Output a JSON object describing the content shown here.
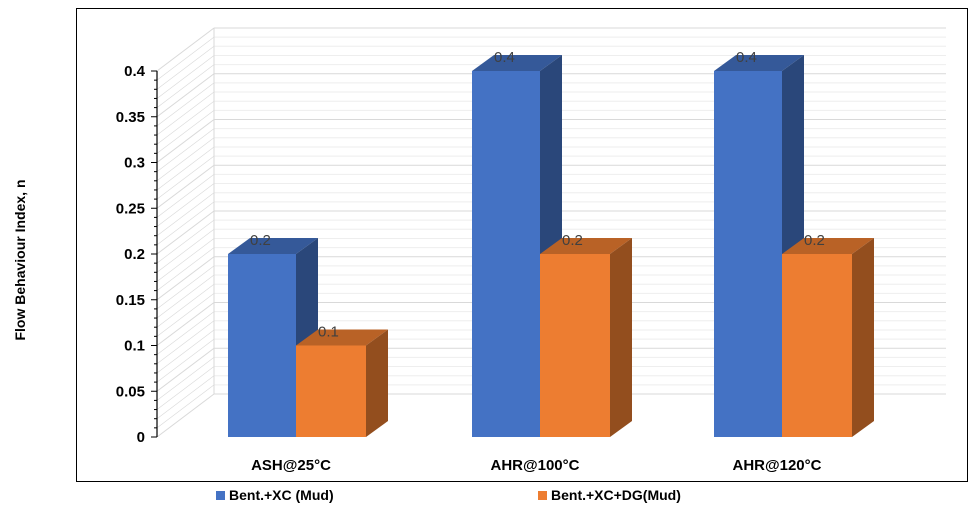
{
  "chart_data": {
    "type": "bar",
    "title": "",
    "ylabel": "Flow Behaviour Index, n",
    "xlabel": "",
    "categories": [
      "ASH@25°C",
      "AHR@100°C",
      "AHR@120°C"
    ],
    "series": [
      {
        "name": "Bent.+XC (Mud)",
        "values": [
          0.2,
          0.4,
          0.4
        ],
        "color": "#4472C4",
        "labels": [
          "0.2",
          "0.4",
          "0.4"
        ]
      },
      {
        "name": "Bent.+XC+DG(Mud)",
        "values": [
          0.1,
          0.2,
          0.2
        ],
        "color": "#ED7D31",
        "labels": [
          "0.1",
          "0.2",
          "0.2"
        ]
      }
    ],
    "ylim": [
      0,
      0.4
    ],
    "yticks": [
      "0",
      "0.05",
      "0.1",
      "0.15",
      "0.2",
      "0.25",
      "0.3",
      "0.35",
      "0.4"
    ],
    "grid": true,
    "legend_position": "bottom",
    "style": "3d-clustered-column"
  }
}
